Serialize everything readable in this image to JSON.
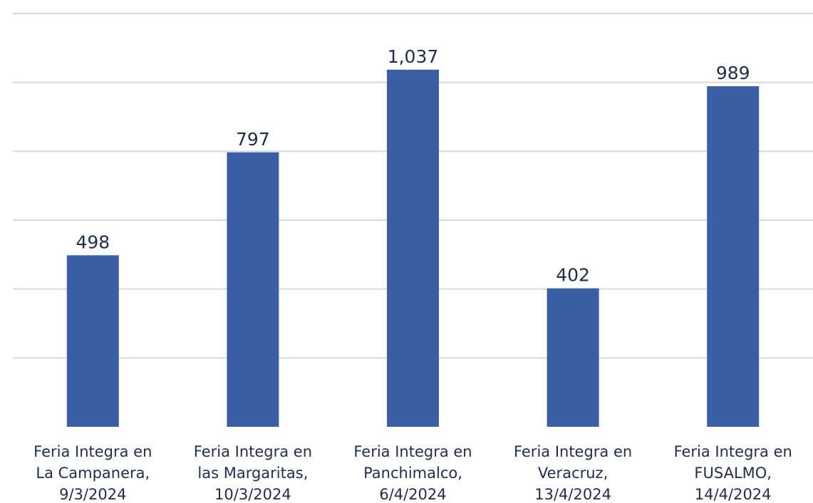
{
  "chart_data": {
    "type": "bar",
    "categories": [
      "Feria Integra en\nLa Campanera,\n9/3/2024",
      "Feria Integra en\nlas Margaritas,\n10/3/2024",
      "Feria Integra en\nPanchimalco,\n6/4/2024",
      "Feria Integra en\nVeracruz,\n13/4/2024",
      "Feria Integra en\nFUSALMO,\n14/4/2024"
    ],
    "values": [
      498,
      797,
      1037,
      402,
      989
    ],
    "value_labels": [
      "498",
      "797",
      "1,037",
      "402",
      "989"
    ],
    "color": "#3a5fa5",
    "ylim": [
      0,
      1200
    ],
    "yticks": [
      200,
      400,
      600,
      800,
      1000,
      1200
    ],
    "grid": true
  }
}
